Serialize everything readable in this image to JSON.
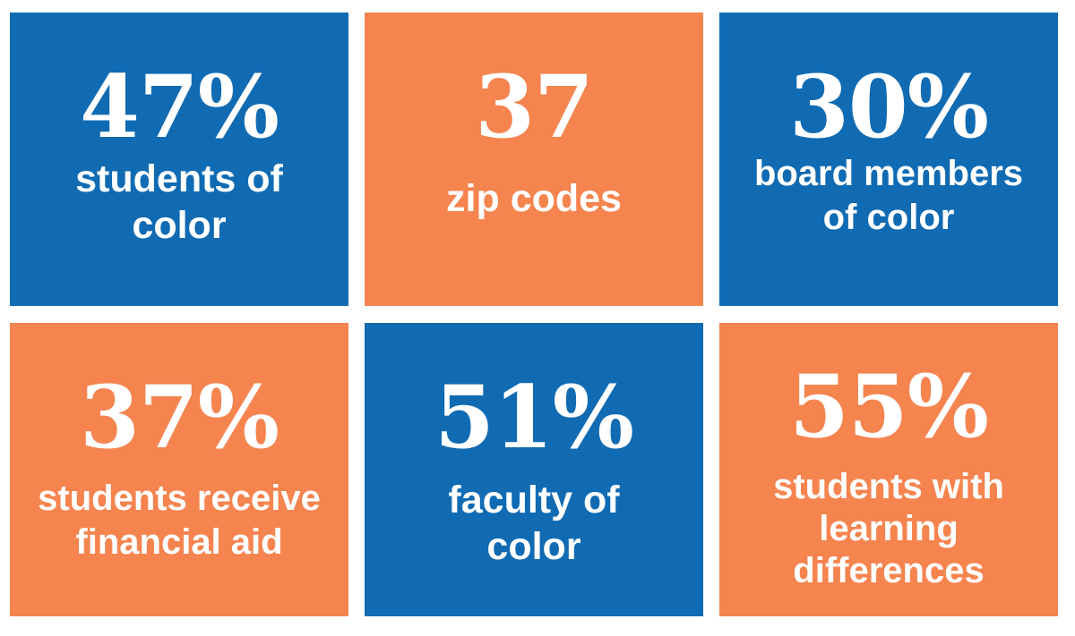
{
  "colors": {
    "blue": "#106bb3",
    "orange": "#f5844f",
    "text": "#ffffff"
  },
  "tiles": [
    {
      "stat": "47%",
      "label_lines": [
        "students of",
        "color"
      ],
      "color": "blue"
    },
    {
      "stat": "37",
      "label_lines": [
        "zip codes"
      ],
      "color": "orange"
    },
    {
      "stat": "30%",
      "label_lines": [
        "board members",
        "of color"
      ],
      "color": "blue"
    },
    {
      "stat": "37%",
      "label_lines": [
        "students receive",
        "financial aid"
      ],
      "color": "orange"
    },
    {
      "stat": "51%",
      "label_lines": [
        "faculty of",
        "color"
      ],
      "color": "blue"
    },
    {
      "stat": "55%",
      "label_lines": [
        "students with",
        "learning",
        "differences"
      ],
      "color": "orange"
    }
  ]
}
